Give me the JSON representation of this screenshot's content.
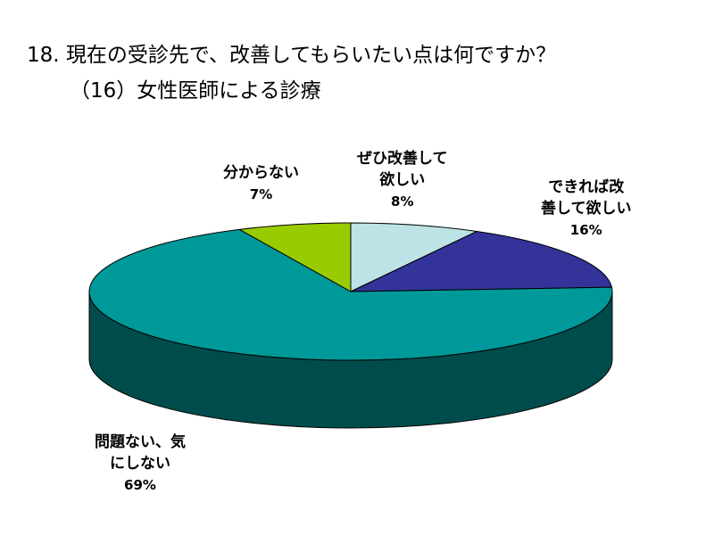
{
  "title": {
    "line1": "18. 現在の受診先で、改善してもらいたい点は何ですか？",
    "line2": "（16）女性医師による診療"
  },
  "chart_data": {
    "type": "pie",
    "title": "18. 現在の受診先で、改善してもらいたい点は何ですか？（16）女性医師による診療",
    "slices": [
      {
        "label_lines": [
          "ぜひ改善して",
          "欲しい"
        ],
        "label": "ぜひ改善して欲しい",
        "value": 8,
        "display": "8%",
        "color": "#bde3e6",
        "side_color": "#7fb0b4"
      },
      {
        "label_lines": [
          "できれば改",
          "善して欲しい"
        ],
        "label": "できれば改善して欲しい",
        "value": 16,
        "display": "16%",
        "color": "#333399",
        "side_color": "#1c1c66"
      },
      {
        "label_lines": [
          "問題ない、気",
          "にしない"
        ],
        "label": "問題ない、気にしない",
        "value": 69,
        "display": "69%",
        "color": "#009999",
        "side_color": "#004c4c"
      },
      {
        "label_lines": [
          "分からない"
        ],
        "label": "分からない",
        "value": 7,
        "display": "7%",
        "color": "#99cc00",
        "side_color": "#668800"
      }
    ]
  }
}
